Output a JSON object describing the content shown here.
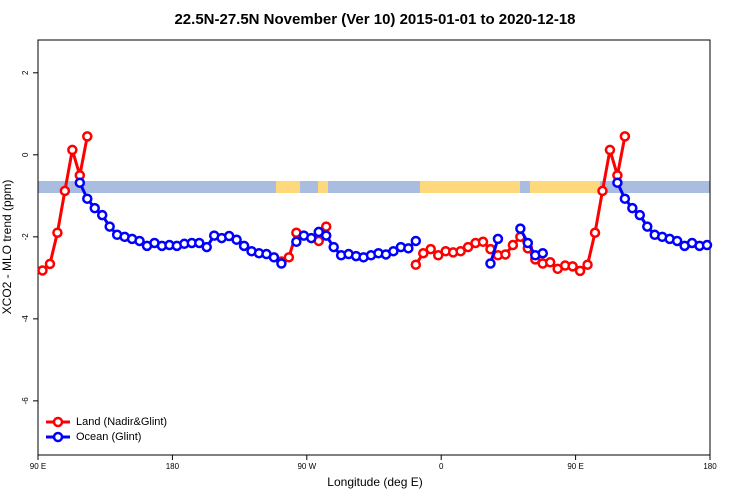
{
  "chart_data": {
    "type": "line",
    "title": "22.5N-27.5N November (Ver 10)   2015-01-01 to 2020-12-18",
    "x_label": "Longitude (deg E)",
    "y_label": "XCO2 - MLO trend (ppm)",
    "xlim": [
      90,
      540
    ],
    "ylim": [
      -7.32,
      2.8
    ],
    "xticks": [
      {
        "value": 90,
        "label": "90 E"
      },
      180,
      {
        "value": 270,
        "label": "90 W"
      },
      {
        "value": 360,
        "label": "0"
      },
      {
        "value": 450,
        "label": "90 E"
      },
      {
        "value": 540,
        "label": "180"
      }
    ],
    "yticks": [
      2,
      0,
      -2,
      -4,
      -6
    ],
    "legend": "bottom-left",
    "x": [
      93,
      98,
      103,
      108,
      113,
      118,
      123,
      128,
      133,
      138,
      143,
      148,
      153,
      158,
      163,
      168,
      173,
      178,
      183,
      188,
      193,
      198,
      203,
      208,
      213,
      218,
      223,
      228,
      233,
      238,
      243,
      248,
      253,
      258,
      263,
      268,
      273,
      278,
      283,
      288,
      293,
      298,
      303,
      308,
      313,
      318,
      323,
      328,
      333,
      338,
      343,
      348,
      353,
      358,
      363,
      368,
      373,
      378,
      383,
      388,
      393,
      398,
      403,
      408,
      413,
      418,
      423,
      428,
      433,
      438,
      443,
      448,
      453,
      458,
      463,
      468,
      473,
      478,
      483,
      488,
      493,
      498,
      503,
      508,
      513,
      518,
      523,
      528,
      533,
      538
    ],
    "series": [
      {
        "name": "Land (Nadir&Glint)",
        "color": "#ff0000",
        "values": [
          -2.82,
          -2.66,
          -1.9,
          -0.88,
          0.12,
          -0.5,
          0.45,
          null,
          null,
          null,
          null,
          null,
          null,
          null,
          null,
          null,
          null,
          null,
          null,
          null,
          null,
          null,
          null,
          null,
          null,
          null,
          null,
          null,
          null,
          null,
          null,
          null,
          -2.6,
          -2.5,
          -1.9,
          null,
          null,
          -2.1,
          -1.75,
          null,
          null,
          null,
          null,
          null,
          null,
          null,
          null,
          null,
          null,
          null,
          -2.68,
          -2.4,
          -2.3,
          -2.45,
          -2.35,
          -2.38,
          -2.35,
          -2.25,
          -2.15,
          -2.12,
          -2.3,
          -2.45,
          -2.43,
          -2.2,
          -2.0,
          -2.28,
          -2.55,
          -2.65,
          -2.62,
          -2.78,
          -2.7,
          -2.72,
          -2.83,
          -2.68,
          -1.9,
          -0.88,
          0.12,
          -0.5,
          0.45,
          null,
          null,
          null,
          null,
          null,
          null,
          null,
          null,
          null,
          null,
          null
        ]
      },
      {
        "name": "Ocean (Glint)",
        "color": "#0000ff",
        "values": [
          null,
          null,
          null,
          null,
          null,
          -0.68,
          -1.07,
          -1.3,
          -1.47,
          -1.75,
          -1.95,
          -2.0,
          -2.05,
          -2.1,
          -2.22,
          -2.15,
          -2.22,
          -2.2,
          -2.22,
          -2.17,
          -2.15,
          -2.15,
          -2.25,
          -1.97,
          -2.03,
          -1.98,
          -2.07,
          -2.22,
          -2.35,
          -2.4,
          -2.42,
          -2.5,
          -2.65,
          null,
          -2.12,
          -1.97,
          -2.03,
          -1.88,
          -1.97,
          -2.25,
          -2.45,
          -2.42,
          -2.47,
          -2.5,
          -2.45,
          -2.4,
          -2.43,
          -2.35,
          -2.25,
          -2.28,
          -2.1,
          null,
          null,
          null,
          null,
          null,
          null,
          null,
          null,
          null,
          -2.65,
          -2.05,
          null,
          null,
          -1.8,
          -2.15,
          -2.45,
          -2.4,
          null,
          null,
          null,
          null,
          null,
          null,
          null,
          null,
          null,
          -0.68,
          -1.07,
          -1.3,
          -1.47,
          -1.75,
          -1.95,
          -2.0,
          -2.05,
          -2.1,
          -2.22,
          -2.15,
          -2.22,
          -2.2
        ]
      }
    ]
  }
}
